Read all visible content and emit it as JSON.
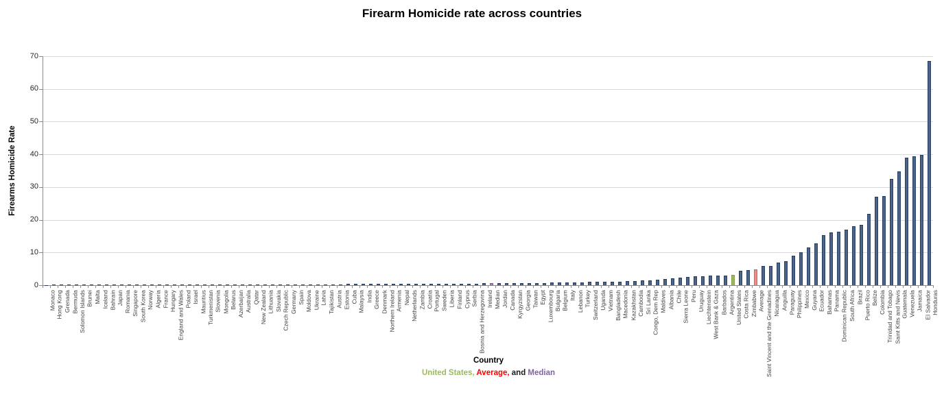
{
  "title": "Firearm Homicide rate across countries",
  "chart_data": {
    "type": "bar",
    "title": "Firearm Homicide rate across countries",
    "xlabel": "Country",
    "ylabel": "Firearms Homicide Rate",
    "ylim": [
      0,
      70
    ],
    "yticks": [
      0,
      10,
      20,
      30,
      40,
      50,
      60,
      70
    ],
    "grid": true,
    "sort": "ascending",
    "categories": [
      "Monaco",
      "Hong Kong",
      "Grenada",
      "Bermuda",
      "Solomon Islands",
      "Brunei",
      "Malta",
      "Iceland",
      "Bahrain",
      "Japan",
      "Romania",
      "Singapore",
      "South Korea",
      "Norway",
      "Algeria",
      "France",
      "Hungary",
      "England and Wales",
      "Poland",
      "Israel",
      "Mauritius",
      "Turkmenistan",
      "Slovenia",
      "Mongolia",
      "Belarus",
      "Azerbaijan",
      "Australia",
      "Qatar",
      "New Zealand",
      "Lithuania",
      "Slovakia",
      "Czech Republic",
      "Germany",
      "Spain",
      "Moldova",
      "Ukraine",
      "Latvia",
      "Tajikistan",
      "Austria",
      "Estonia",
      "Cuba",
      "Malaysia",
      "India",
      "Greece",
      "Denmark",
      "Northern Ireland",
      "Armenia",
      "Nepal",
      "Netherlands",
      "Zambia",
      "Croatia",
      "Portugal",
      "Sweden",
      "Liberia",
      "Finland",
      "Cyprus",
      "Serbia",
      "Bosnia and Herzegovina",
      "Ireland",
      "Median",
      "Jordan",
      "Canada",
      "Kyrgyzstan",
      "Georgia",
      "Taiwan",
      "Egypt",
      "Luxembourg",
      "Bulgaria",
      "Belgium",
      "Italy",
      "Lebanon",
      "Turkey",
      "Switzerland",
      "Uganda",
      "Vietnam",
      "Bangladesh",
      "Macedonia",
      "Kazakhstan",
      "Cambodia",
      "Sri Lanka",
      "Congo, Dem Rep",
      "Maldives",
      "Albania",
      "Chile",
      "Sierra Leone",
      "Peru",
      "Uruguay",
      "Liechtenstein",
      "West Bank & Gaza",
      "Barbados",
      "Argentina",
      "United States",
      "Costa Rica",
      "Zimbabwe",
      "Average",
      "Saint Vincent and the Grenadines",
      "Nicaragua",
      "Anguilla",
      "Paraguay",
      "Philippines",
      "Mexico",
      "Guyana",
      "Ecuador",
      "Bahamas",
      "Panama",
      "Dominican Republic",
      "South Africa",
      "Brazil",
      "Puerto Rico",
      "Belize",
      "Colombia",
      "Trinidad and Tobago",
      "Saint Kitts and Nevis",
      "Guatemala",
      "Venezuela",
      "Jamaica",
      "El Salvador",
      "Honduras"
    ],
    "values": [
      0.0,
      0.01,
      0.02,
      0.02,
      0.03,
      0.03,
      0.04,
      0.05,
      0.06,
      0.1,
      0.12,
      0.12,
      0.13,
      0.14,
      0.15,
      0.15,
      0.15,
      0.15,
      0.16,
      0.17,
      0.17,
      0.18,
      0.18,
      0.19,
      0.2,
      0.21,
      0.22,
      0.22,
      0.23,
      0.24,
      0.24,
      0.25,
      0.25,
      0.26,
      0.27,
      0.28,
      0.29,
      0.3,
      0.3,
      0.31,
      0.32,
      0.32,
      0.33,
      0.34,
      0.35,
      0.36,
      0.38,
      0.4,
      0.42,
      0.44,
      0.45,
      0.46,
      0.47,
      0.47,
      0.48,
      0.49,
      0.5,
      0.52,
      0.54,
      0.55,
      0.58,
      0.6,
      0.62,
      0.65,
      0.68,
      0.7,
      0.72,
      0.75,
      0.78,
      0.8,
      0.85,
      0.9,
      0.95,
      1.0,
      1.05,
      1.1,
      1.15,
      1.25,
      1.35,
      1.45,
      1.55,
      1.65,
      1.8,
      2.0,
      2.3,
      2.5,
      2.7,
      2.8,
      2.9,
      3.0,
      3.0,
      3.2,
      4.3,
      4.6,
      4.9,
      5.86,
      5.92,
      6.87,
      7.35,
      8.93,
      9.97,
      11.46,
      12.73,
      15.37,
      16.18,
      16.29,
      17.03,
      18.1,
      18.39,
      21.82,
      27.09,
      27.31,
      32.44,
      34.81,
      38.97,
      39.4,
      39.9,
      68.43
    ],
    "bar_colors": {
      "default": {
        "edge": "#20395c",
        "fill": "#5c7396"
      },
      "United States": {
        "edge": "#7e9a42",
        "fill": "#a9c169"
      },
      "Average": {
        "edge": "#d95551",
        "fill": "#f0a09e"
      },
      "Median": {
        "edge": "#6f5b93",
        "fill": "#a897c5"
      }
    },
    "legend_position": "below-x-axis-title"
  },
  "legend": {
    "parts": [
      {
        "text": "United States,",
        "color": "#9bbb59"
      },
      {
        "text": " ",
        "color": "#000000"
      },
      {
        "text": "Average,",
        "color": "#ff0000"
      },
      {
        "text": " and ",
        "color": "#1a1a1a"
      },
      {
        "text": "Median",
        "color": "#8064a2"
      }
    ]
  },
  "axis_colors": {
    "gridline": "#d9d9d9",
    "axis": "#898989",
    "tick_label": "#262626",
    "category_label": "#3f3f3f"
  }
}
